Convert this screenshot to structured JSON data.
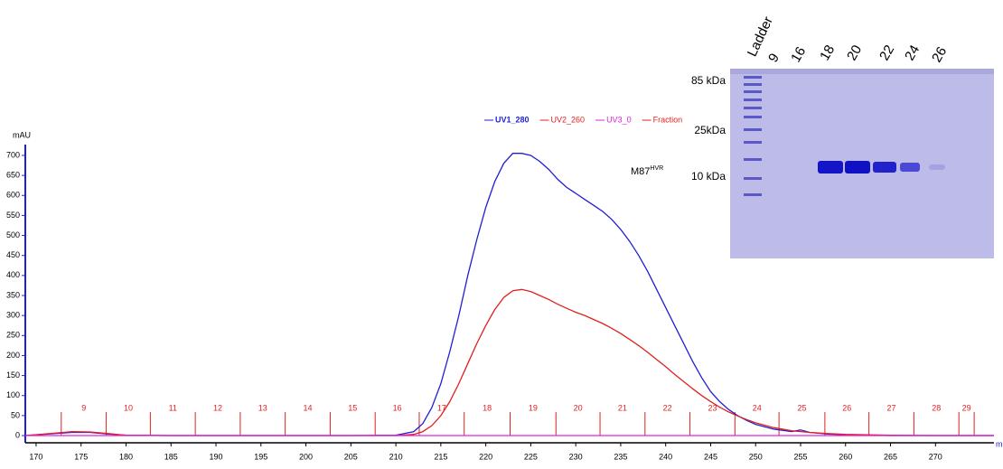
{
  "chart_data": {
    "type": "line",
    "y_label": "mAU",
    "x_label": "ml",
    "xlim": [
      168.8,
      276.5
    ],
    "ylim": [
      -18,
      727
    ],
    "xticks": [
      170,
      175,
      180,
      185,
      190,
      195,
      200,
      205,
      210,
      215,
      220,
      225,
      230,
      235,
      240,
      245,
      250,
      255,
      260,
      265,
      270
    ],
    "yticks": [
      0,
      50,
      100,
      150,
      200,
      250,
      300,
      350,
      400,
      450,
      500,
      550,
      600,
      650,
      700
    ],
    "x": [
      168.8,
      172,
      174,
      176,
      178,
      180,
      185,
      190,
      195,
      200,
      205,
      210,
      212,
      213,
      214,
      215,
      216,
      217,
      218,
      219,
      220,
      221,
      222,
      223,
      224,
      225,
      226,
      227,
      228,
      229,
      230,
      231,
      232,
      233,
      234,
      235,
      236,
      237,
      238,
      239,
      240,
      241,
      242,
      243,
      244,
      245,
      246,
      247,
      248,
      249,
      250,
      252,
      254,
      255,
      256,
      258,
      260,
      265,
      270,
      276.5
    ],
    "series": [
      {
        "name": "UV1_280",
        "color": "#1f1fd6",
        "values": [
          0,
          5,
          8,
          8,
          4,
          1,
          0,
          0,
          0,
          0,
          0,
          1,
          10,
          30,
          70,
          130,
          210,
          300,
          400,
          490,
          570,
          635,
          680,
          705,
          705,
          700,
          685,
          665,
          640,
          620,
          605,
          590,
          575,
          560,
          540,
          515,
          485,
          450,
          410,
          365,
          320,
          275,
          230,
          185,
          145,
          110,
          85,
          65,
          50,
          38,
          28,
          16,
          10,
          14,
          8,
          4,
          2,
          0,
          0,
          0
        ]
      },
      {
        "name": "UV2_260",
        "color": "#e02020",
        "values": [
          0,
          6,
          10,
          9,
          5,
          1,
          0,
          0,
          0,
          0,
          0,
          0,
          3,
          10,
          25,
          50,
          85,
          130,
          180,
          230,
          275,
          315,
          345,
          362,
          365,
          360,
          350,
          340,
          328,
          318,
          308,
          300,
          290,
          280,
          268,
          255,
          240,
          225,
          208,
          190,
          172,
          153,
          135,
          117,
          100,
          85,
          71,
          59,
          49,
          40,
          32,
          20,
          12,
          10,
          8,
          5,
          3,
          1,
          0,
          0
        ]
      },
      {
        "name": "UV3_0",
        "color": "#e020e0",
        "x": [
          168.8,
          276.5
        ],
        "values": [
          0,
          0
        ]
      }
    ],
    "fractions": {
      "name": "Fraction",
      "color": "#e02020",
      "labels": [
        "9",
        "10",
        "11",
        "12",
        "13",
        "14",
        "15",
        "16",
        "17",
        "18",
        "19",
        "20",
        "21",
        "22",
        "23",
        "24",
        "25",
        "26",
        "27",
        "28",
        "29"
      ],
      "bounds": [
        172.8,
        177.8,
        182.7,
        187.7,
        192.7,
        197.7,
        202.7,
        207.7,
        212.6,
        217.6,
        222.7,
        227.8,
        232.7,
        237.7,
        242.7,
        247.7,
        252.6,
        257.7,
        262.6,
        267.6,
        272.6,
        274.3
      ]
    },
    "annotation": {
      "text": "M87",
      "sup": "HVR"
    }
  },
  "gel": {
    "lane_labels": [
      "Ladder",
      "9",
      "16",
      "18",
      "20",
      "22",
      "24",
      "26"
    ],
    "size_labels": [
      "85 kDa",
      "25kDa",
      "10 kDa"
    ]
  }
}
